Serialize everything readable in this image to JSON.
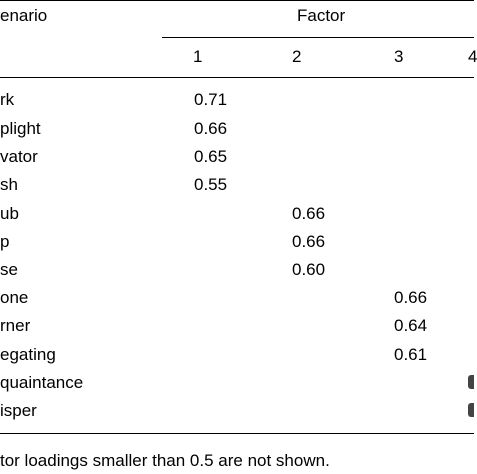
{
  "header": {
    "scenario_label": "enario",
    "factor_label": "Factor",
    "factor_numbers": [
      "1",
      "2",
      "3",
      "4"
    ]
  },
  "rows": [
    {
      "label": "rk",
      "loadings": [
        "0.71",
        "",
        "",
        ""
      ]
    },
    {
      "label": "plight",
      "loadings": [
        "0.66",
        "",
        "",
        ""
      ]
    },
    {
      "label": "vator",
      "loadings": [
        "0.65",
        "",
        "",
        ""
      ]
    },
    {
      "label": "sh",
      "loadings": [
        "0.55",
        "",
        "",
        ""
      ]
    },
    {
      "label": "ub",
      "loadings": [
        "",
        "0.66",
        "",
        ""
      ]
    },
    {
      "label": "p",
      "loadings": [
        "",
        "0.66",
        "",
        ""
      ]
    },
    {
      "label": "se",
      "loadings": [
        "",
        "0.60",
        "",
        ""
      ]
    },
    {
      "label": "one",
      "loadings": [
        "",
        "",
        "0.66",
        ""
      ]
    },
    {
      "label": "rner",
      "loadings": [
        "",
        "",
        "0.64",
        ""
      ]
    },
    {
      "label": "egating",
      "loadings": [
        "",
        "",
        "0.61",
        ""
      ]
    },
    {
      "label": "quaintance",
      "loadings": [
        "",
        "",
        "",
        ""
      ]
    },
    {
      "label": "isper",
      "loadings": [
        "",
        "",
        "",
        ""
      ]
    }
  ],
  "footnote": "tor loadings smaller than 0.5 are not shown."
}
